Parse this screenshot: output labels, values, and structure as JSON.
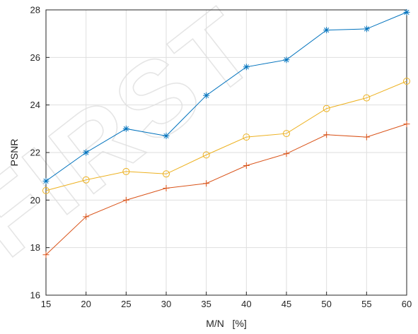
{
  "watermark": "FIRST",
  "chart_data": {
    "type": "line",
    "title": "",
    "xlabel": "M/N   [%]",
    "ylabel": "PSNR",
    "xlim": [
      15,
      60
    ],
    "ylim": [
      16,
      28
    ],
    "xticks": [
      15,
      20,
      25,
      30,
      35,
      40,
      45,
      50,
      55,
      60
    ],
    "yticks": [
      16,
      18,
      20,
      22,
      24,
      26,
      28
    ],
    "grid": true,
    "legend": "none",
    "x": [
      15,
      20,
      25,
      30,
      35,
      40,
      45,
      50,
      55,
      60
    ],
    "series": [
      {
        "color": "#0072BD",
        "marker": "asterisk",
        "values": [
          20.8,
          22.0,
          23.0,
          22.7,
          24.4,
          25.6,
          25.9,
          27.15,
          27.2,
          27.9
        ]
      },
      {
        "color": "#EDB120",
        "marker": "circle",
        "values": [
          20.4,
          20.85,
          21.2,
          21.1,
          21.9,
          22.65,
          22.8,
          23.85,
          24.3,
          25.0
        ]
      },
      {
        "color": "#D95319",
        "marker": "plus",
        "values": [
          17.7,
          19.3,
          20.0,
          20.5,
          20.7,
          21.45,
          21.95,
          22.75,
          22.65,
          23.2
        ]
      }
    ]
  }
}
